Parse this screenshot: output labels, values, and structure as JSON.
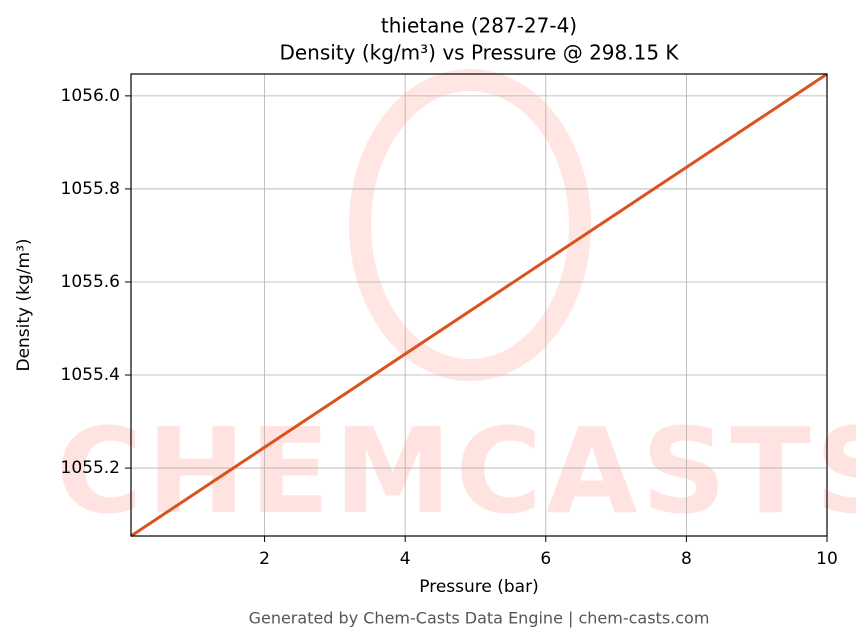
{
  "chart_data": {
    "type": "line",
    "title": [
      "thietane (287-27-4)",
      "Density (kg/m³) vs Pressure @ 298.15 K"
    ],
    "x_label": "Pressure (bar)",
    "y_label": "Density (kg/m³)",
    "footer": "Generated by Chem-Casts Data Engine | chem-casts.com",
    "watermark": "CHEMCASTS",
    "x": [
      0.1,
      10
    ],
    "series": [
      {
        "name": "Density",
        "color": "#d9531e",
        "values": [
          1055.054,
          1056.047
        ]
      }
    ],
    "xlim": [
      0.1,
      10
    ],
    "xticks": [
      2,
      4,
      6,
      8,
      10
    ],
    "ylim": [
      1055.054,
      1056.047
    ],
    "yticks": [
      1055.2,
      1055.4,
      1055.6,
      1055.8,
      {
        "value": 1056.0,
        "label": "1056.0"
      }
    ],
    "grid": true
  }
}
